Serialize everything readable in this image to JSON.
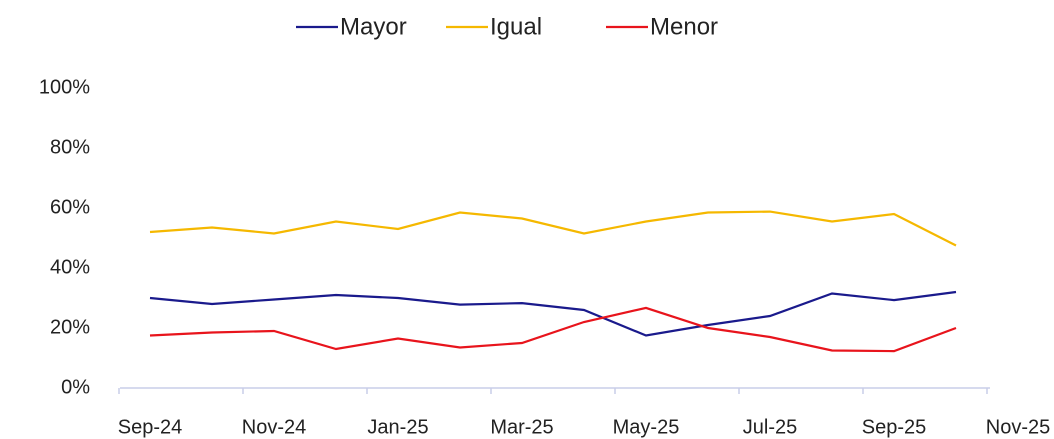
{
  "chart_data": {
    "type": "line",
    "categories": [
      "Sep-24",
      null,
      "Nov-24",
      null,
      "Jan-25",
      null,
      "Mar-25",
      null,
      "May-25",
      null,
      "Jul-25",
      null,
      "Sep-25",
      null,
      "Nov-25"
    ],
    "series": [
      {
        "name": "Mayor",
        "color": "#1a1a8c",
        "values": [
          30,
          28,
          29.5,
          31,
          30,
          27.8,
          28.3,
          26,
          17.5,
          21,
          24,
          31.5,
          29.3,
          32,
          null
        ]
      },
      {
        "name": "Igual",
        "color": "#f5b800",
        "values": [
          52,
          53.5,
          51.5,
          55.5,
          53,
          58.5,
          56.5,
          51.5,
          55.5,
          58.5,
          58.8,
          55.5,
          58,
          47.5,
          null
        ]
      },
      {
        "name": "Menor",
        "color": "#e8141c",
        "values": [
          17.5,
          18.5,
          19,
          13,
          16.5,
          13.5,
          15,
          22,
          26.7,
          20,
          17,
          12.5,
          12.3,
          20,
          null
        ]
      }
    ],
    "ylim": [
      0,
      100
    ],
    "yticks": [
      {
        "value": 0,
        "label": "0%"
      },
      {
        "value": 20,
        "label": "20%"
      },
      {
        "value": 40,
        "label": "40%"
      },
      {
        "value": 60,
        "label": "60%"
      },
      {
        "value": 80,
        "label": "80%"
      },
      {
        "value": 100,
        "label": "100%"
      }
    ],
    "grid": false,
    "legend": "top"
  }
}
